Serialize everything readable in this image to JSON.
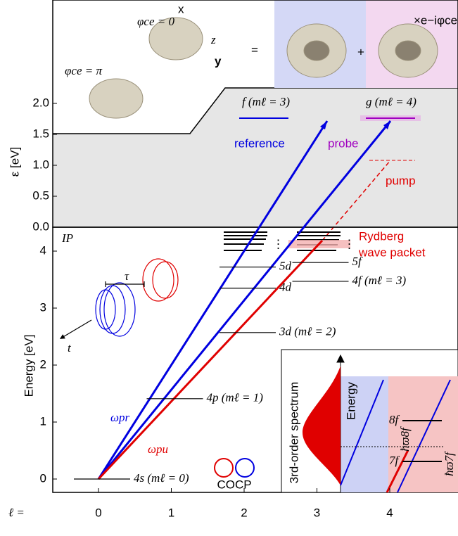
{
  "top_panel": {
    "phase_zero": "φce = 0",
    "phase_pi": "φce = π",
    "equals": "=",
    "plus": "+",
    "phase_factor": "×e−iφce",
    "axis_x": "x",
    "axis_y": "y",
    "axis_z": "z",
    "y_label": "ε [eV]",
    "yticks": [
      {
        "value": 0,
        "label": "0.0"
      },
      {
        "value": 0.5,
        "label": "0.5"
      },
      {
        "value": 1,
        "label": "1.0"
      },
      {
        "value": 1.5,
        "label": "1.5"
      },
      {
        "value": 2,
        "label": "2.0"
      }
    ],
    "state_f": "f (mℓ = 3)",
    "state_g": "g (mℓ = 4)",
    "reference": "reference",
    "probe": "probe",
    "pump": "pump"
  },
  "bottom_panel": {
    "ip": "IP",
    "y_label": "Energy [eV]",
    "yticks": [
      0,
      1,
      2,
      3,
      4
    ],
    "x_label": "ℓ =",
    "xticks": [
      0,
      1,
      2,
      3,
      4
    ],
    "rydberg": "Rydberg",
    "wave_packet": "wave packet",
    "tau": "τ",
    "time": "t",
    "omega_pr": "ωpr",
    "omega_pu": "ωpu",
    "cocp": "COCP",
    "dots": "⋮",
    "levels": [
      {
        "label": "4s (mℓ = 0)",
        "l": 0,
        "energy": 0
      },
      {
        "label": "4p (mℓ = 1)",
        "l": 1,
        "energy": 1.41
      },
      {
        "label": "3d (mℓ = 2)",
        "l": 2,
        "energy": 2.57
      },
      {
        "label": "4d",
        "l": 2,
        "energy": 3.35
      },
      {
        "label": "5d",
        "l": 2,
        "energy": 3.72
      },
      {
        "label": "4f (mℓ = 3)",
        "l": 3,
        "energy": 3.47
      },
      {
        "label": "5f",
        "l": 3,
        "energy": 3.8
      }
    ]
  },
  "inset": {
    "spectrum": "3rd-order spectrum",
    "energy": "Energy",
    "level_8f": "8f",
    "level_7f": "7f",
    "omega_8f": "ħϖ8f",
    "omega_7f": "ħϖ7f"
  }
}
